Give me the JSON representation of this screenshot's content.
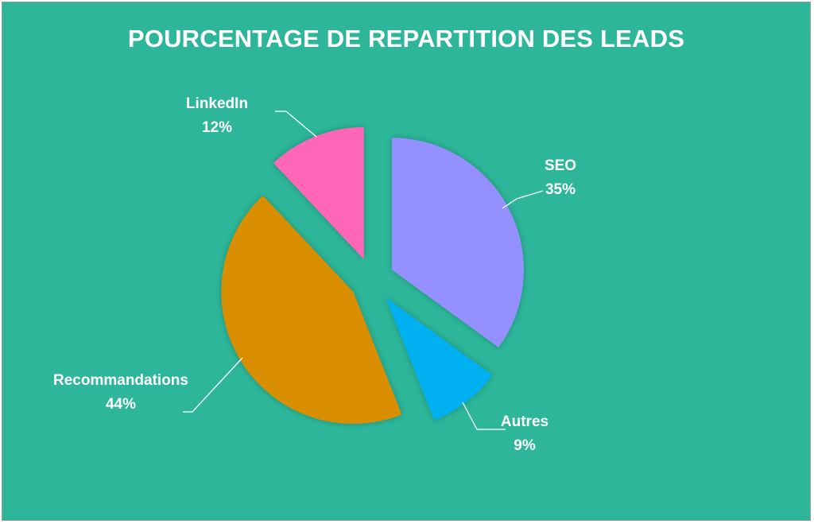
{
  "chart_data": {
    "type": "pie",
    "title": "POURCENTAGE DE REPARTITION DES LEADS",
    "exploded": true,
    "slices": [
      {
        "name": "SEO",
        "value": 35,
        "label": "35%",
        "color": "#9590ff"
      },
      {
        "name": "Autres",
        "value": 9,
        "label": "9%",
        "color": "#00b0f0"
      },
      {
        "name": "Recommandations",
        "value": 44,
        "label": "44%",
        "color": "#d98e00"
      },
      {
        "name": "LinkedIn",
        "value": 12,
        "label": "12%",
        "color": "#ff66b8"
      }
    ]
  }
}
